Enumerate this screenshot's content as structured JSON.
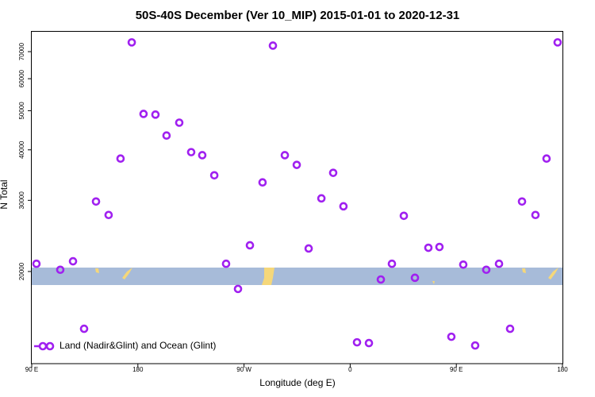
{
  "chart_data": {
    "type": "scatter",
    "title": "50S-40S December (Ver 10_MIP)   2015-01-01 to 2020-12-31",
    "x_label": "Longitude (deg E)",
    "y_label": "N Total",
    "x": [
      94,
      114.2,
      125,
      134.4,
      144.5,
      155.2,
      165.3,
      174.8,
      184.8,
      194.9,
      204.3,
      215.1,
      225.2,
      234.6,
      244.8,
      254.8,
      264.9,
      275,
      285.7,
      294.5,
      304.6,
      314.7,
      324.8,
      335.6,
      345.6,
      354.3,
      365.8,
      375.9,
      386,
      395.4,
      405.5,
      414.9,
      426.3,
      435.7,
      445.8,
      455.9,
      466,
      475.4,
      486.2,
      495.6,
      505.7,
      517.1,
      526.5,
      535.9
    ],
    "series": [
      {
        "name": "Land (Nadir&Glint) and Ocean (Glint)",
        "color": "#a020f0",
        "values": [
          20900,
          20200,
          21200,
          14430,
          29800,
          27600,
          38060,
          73800,
          49090,
          48900,
          43400,
          46700,
          39480,
          38800,
          34600,
          20900,
          18110,
          23220,
          33230,
          72450,
          38800,
          36720,
          22800,
          30340,
          35090,
          29000,
          13360,
          13300,
          19110,
          20900,
          27470,
          19300,
          22900,
          23000,
          13790,
          20800,
          13120,
          20200,
          20900,
          14430,
          29800,
          27600,
          38060,
          73800
        ]
      }
    ],
    "xlim": [
      90,
      540
    ],
    "xticks": [
      {
        "value": 90,
        "label": "90 E"
      },
      {
        "value": 180,
        "label": "180"
      },
      {
        "value": 270,
        "label": "90 W"
      },
      {
        "value": 360,
        "label": "0"
      },
      {
        "value": 450,
        "label": "90 E"
      },
      {
        "value": 540,
        "label": "180"
      }
    ],
    "ylim": [
      11830,
      78400
    ],
    "log_y": true,
    "yticks": [
      20000,
      30000,
      40000,
      50000,
      60000,
      70000
    ],
    "legend": "bottom-left"
  }
}
